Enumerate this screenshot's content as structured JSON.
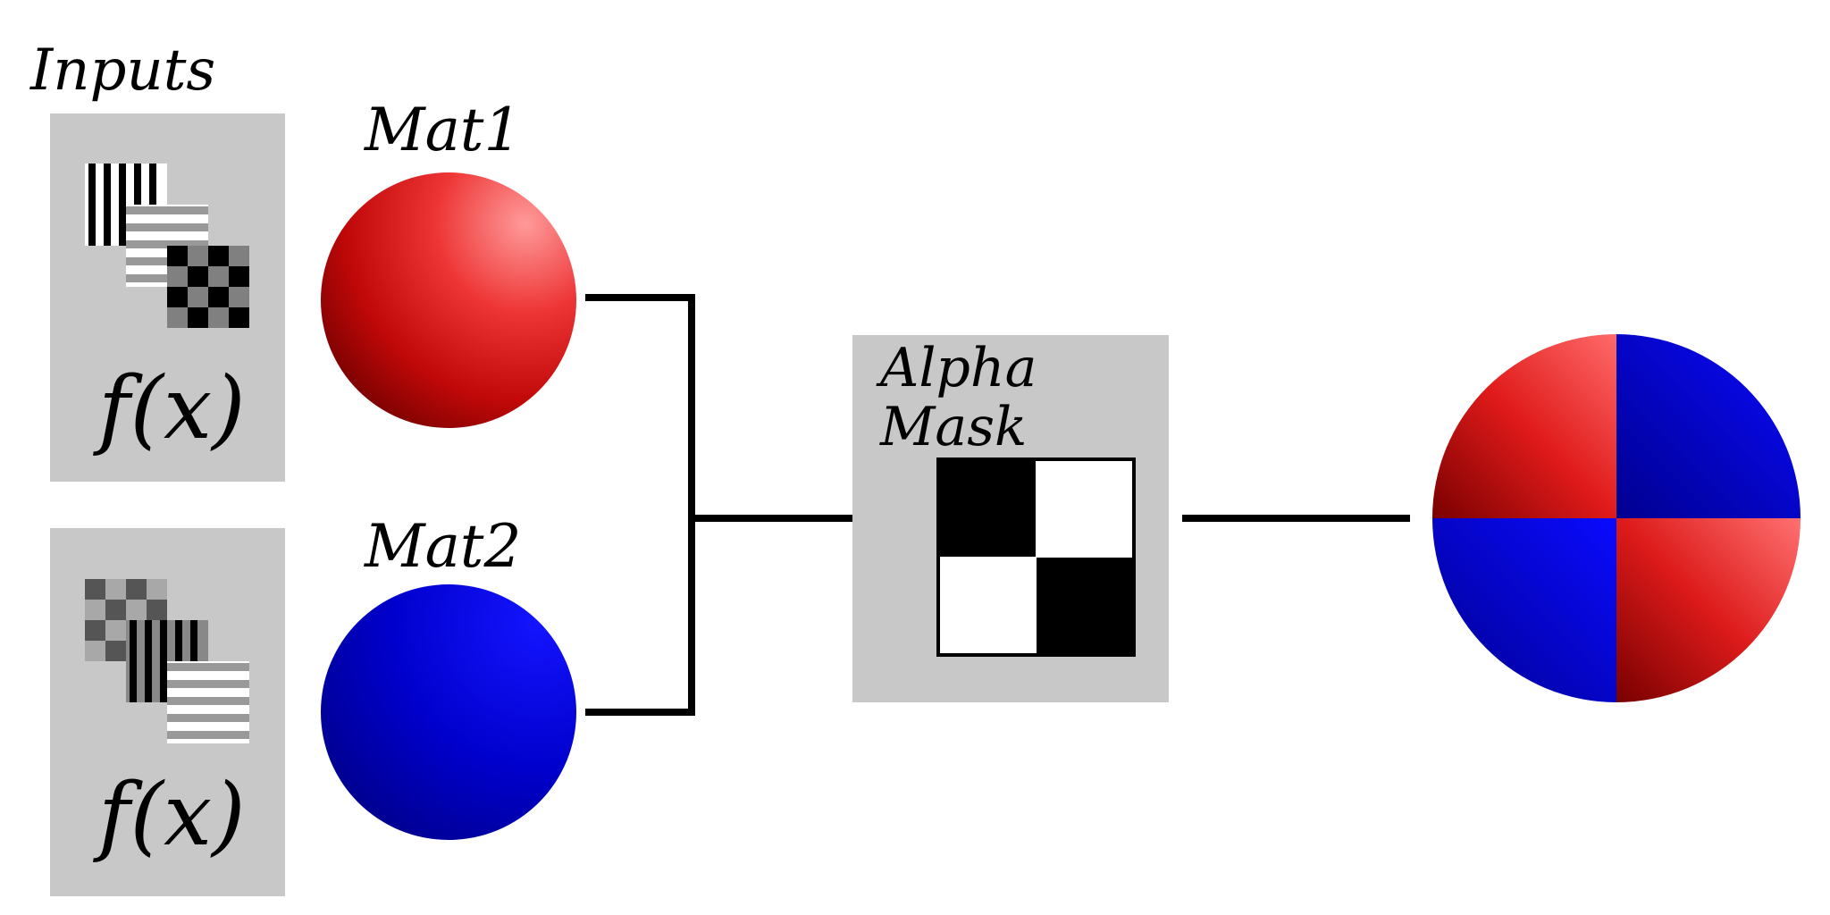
{
  "inputs_label": "Inputs",
  "materials": [
    {
      "label": "Mat1",
      "color": "#dd1111",
      "function_label": "f(x)"
    },
    {
      "label": "Mat2",
      "color": "#0000dd",
      "function_label": "f(x)"
    }
  ],
  "mask": {
    "line1": "Alpha",
    "line2": "Mask",
    "pattern": [
      [
        1,
        0
      ],
      [
        0,
        1
      ]
    ]
  },
  "output": {
    "quadrants": [
      "mat1",
      "mat2",
      "mat2",
      "mat1"
    ]
  },
  "colors": {
    "panel": "#c8c8c8",
    "line": "#000000",
    "red": "#ff3333",
    "blue": "#0000ee"
  }
}
